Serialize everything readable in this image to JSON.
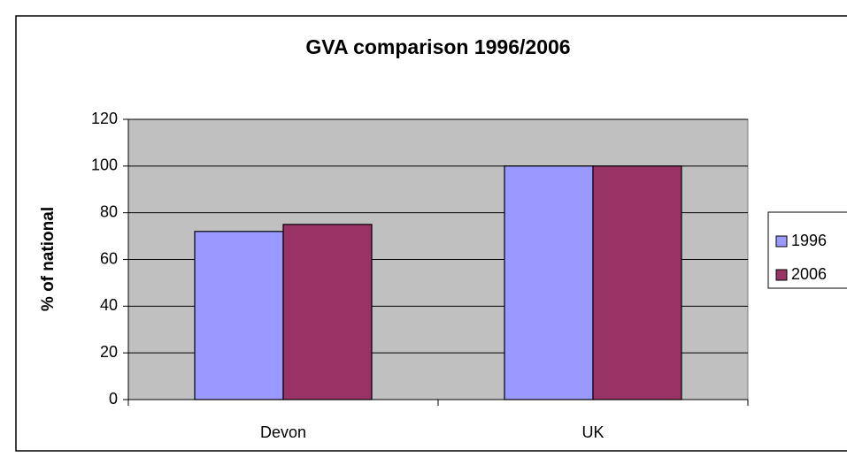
{
  "chart_data": {
    "type": "bar",
    "title": "GVA comparison 1996/2006",
    "y_label": "% of national",
    "categories": [
      "Devon",
      "UK"
    ],
    "series": [
      {
        "name": "1996",
        "color": "#9999ff",
        "values": [
          72,
          100
        ]
      },
      {
        "name": "2006",
        "color": "#993366",
        "values": [
          75,
          100
        ]
      }
    ],
    "ylim": [
      0,
      120
    ],
    "yticks": [
      0,
      20,
      40,
      60,
      80,
      100,
      120
    ],
    "grid": true,
    "legend": "right"
  }
}
